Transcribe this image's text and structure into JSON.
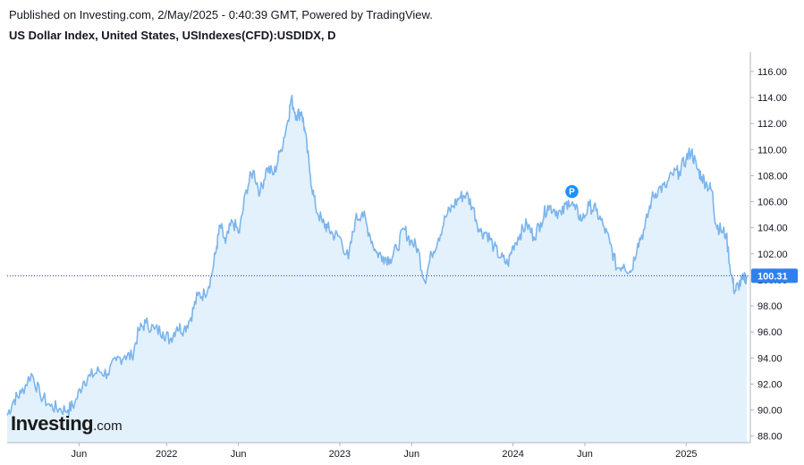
{
  "header": {
    "published_line": "Published on Investing.com, 2/May/2025 - 0:40:39 GMT, Powered by TradingView.",
    "instrument_line": "US Dollar Index, United States, USIndexes(CFD):USDIDX, D"
  },
  "logo": {
    "main": "Investing",
    "suffix": ".com"
  },
  "colors": {
    "line": "#7cb5ec",
    "fill": "#e3f1fd",
    "price_tag": "#2f80ed",
    "marker": "#1e90ff",
    "axis": "#b2b5be",
    "guide": "#1c3aa9"
  },
  "chart_data": {
    "type": "area",
    "title": "US Dollar Index, United States, USIndexes(CFD):USDIDX, D",
    "xlabel": "",
    "ylabel": "",
    "ylim": [
      87.5,
      117.5
    ],
    "xlim": [
      2021.08,
      2025.37
    ],
    "yticks": [
      88,
      90,
      92,
      94,
      96,
      98,
      100,
      102,
      104,
      106,
      108,
      110,
      112,
      114,
      116
    ],
    "ytick_labels": [
      "88.00",
      "90.00",
      "92.00",
      "94.00",
      "96.00",
      "98.00",
      "100.00",
      "102.00",
      "104.00",
      "106.00",
      "108.00",
      "110.00",
      "112.00",
      "114.00",
      "116.00"
    ],
    "xticks": [
      {
        "t": 2021.495,
        "label": "Jun"
      },
      {
        "t": 2022.0,
        "label": "2022"
      },
      {
        "t": 2022.415,
        "label": "Jun"
      },
      {
        "t": 2023.0,
        "label": "2023"
      },
      {
        "t": 2023.415,
        "label": "Jun"
      },
      {
        "t": 2024.0,
        "label": "2024"
      },
      {
        "t": 2024.415,
        "label": "Jun"
      },
      {
        "t": 2025.0,
        "label": "2025"
      }
    ],
    "last_price": 100.31,
    "last_price_label": "100.31",
    "marker": {
      "t": 2024.34,
      "value": 106.5,
      "label": "P"
    },
    "series": [
      {
        "name": "USDIDX",
        "points": [
          [
            2021.08,
            89.6
          ],
          [
            2021.12,
            90.8
          ],
          [
            2021.16,
            91.3
          ],
          [
            2021.22,
            92.8
          ],
          [
            2021.27,
            91.2
          ],
          [
            2021.33,
            90.3
          ],
          [
            2021.38,
            90.1
          ],
          [
            2021.43,
            90.0
          ],
          [
            2021.47,
            90.5
          ],
          [
            2021.52,
            92.2
          ],
          [
            2021.56,
            92.6
          ],
          [
            2021.61,
            93.0
          ],
          [
            2021.66,
            92.8
          ],
          [
            2021.71,
            93.8
          ],
          [
            2021.76,
            94.2
          ],
          [
            2021.8,
            94.1
          ],
          [
            2021.84,
            96.1
          ],
          [
            2021.88,
            96.7
          ],
          [
            2021.93,
            96.2
          ],
          [
            2021.98,
            96.0
          ],
          [
            2022.02,
            95.4
          ],
          [
            2022.06,
            96.4
          ],
          [
            2022.1,
            96.2
          ],
          [
            2022.14,
            97.1
          ],
          [
            2022.18,
            98.8
          ],
          [
            2022.22,
            98.9
          ],
          [
            2022.26,
            100.3
          ],
          [
            2022.29,
            102.6
          ],
          [
            2022.31,
            104.2
          ],
          [
            2022.34,
            102.8
          ],
          [
            2022.38,
            104.5
          ],
          [
            2022.42,
            103.6
          ],
          [
            2022.46,
            106.9
          ],
          [
            2022.5,
            108.4
          ],
          [
            2022.54,
            106.7
          ],
          [
            2022.58,
            108.6
          ],
          [
            2022.62,
            108.1
          ],
          [
            2022.66,
            110.0
          ],
          [
            2022.7,
            112.2
          ],
          [
            2022.72,
            113.9
          ],
          [
            2022.75,
            112.6
          ],
          [
            2022.78,
            112.9
          ],
          [
            2022.8,
            111.3
          ],
          [
            2022.83,
            108.0
          ],
          [
            2022.86,
            105.6
          ],
          [
            2022.9,
            104.4
          ],
          [
            2022.93,
            104.0
          ],
          [
            2022.96,
            103.5
          ],
          [
            2023.0,
            103.3
          ],
          [
            2023.05,
            101.6
          ],
          [
            2023.09,
            104.6
          ],
          [
            2023.13,
            105.2
          ],
          [
            2023.17,
            103.6
          ],
          [
            2023.21,
            102.1
          ],
          [
            2023.25,
            101.8
          ],
          [
            2023.29,
            101.6
          ],
          [
            2023.33,
            102.4
          ],
          [
            2023.37,
            103.9
          ],
          [
            2023.41,
            103.0
          ],
          [
            2023.45,
            102.4
          ],
          [
            2023.49,
            99.9
          ],
          [
            2023.53,
            102.0
          ],
          [
            2023.57,
            103.2
          ],
          [
            2023.61,
            104.8
          ],
          [
            2023.65,
            105.6
          ],
          [
            2023.69,
            106.3
          ],
          [
            2023.73,
            106.6
          ],
          [
            2023.77,
            105.5
          ],
          [
            2023.81,
            103.7
          ],
          [
            2023.85,
            103.6
          ],
          [
            2023.89,
            102.5
          ],
          [
            2023.93,
            101.7
          ],
          [
            2023.97,
            101.2
          ],
          [
            2024.0,
            102.6
          ],
          [
            2024.04,
            103.5
          ],
          [
            2024.08,
            104.3
          ],
          [
            2024.12,
            103.3
          ],
          [
            2024.16,
            104.4
          ],
          [
            2024.2,
            105.7
          ],
          [
            2024.24,
            105.4
          ],
          [
            2024.28,
            105.0
          ],
          [
            2024.32,
            106.1
          ],
          [
            2024.36,
            105.4
          ],
          [
            2024.4,
            104.6
          ],
          [
            2024.44,
            105.7
          ],
          [
            2024.48,
            105.3
          ],
          [
            2024.52,
            104.2
          ],
          [
            2024.56,
            102.8
          ],
          [
            2024.6,
            100.9
          ],
          [
            2024.64,
            101.2
          ],
          [
            2024.68,
            100.6
          ],
          [
            2024.72,
            102.8
          ],
          [
            2024.76,
            103.9
          ],
          [
            2024.8,
            106.2
          ],
          [
            2024.84,
            107.0
          ],
          [
            2024.88,
            107.1
          ],
          [
            2024.92,
            108.1
          ],
          [
            2024.96,
            108.3
          ],
          [
            2025.0,
            109.3
          ],
          [
            2025.03,
            109.9
          ],
          [
            2025.06,
            108.6
          ],
          [
            2025.09,
            107.9
          ],
          [
            2025.12,
            107.3
          ],
          [
            2025.15,
            106.8
          ],
          [
            2025.17,
            104.3
          ],
          [
            2025.2,
            103.8
          ],
          [
            2025.23,
            103.5
          ],
          [
            2025.26,
            100.4
          ],
          [
            2025.28,
            99.1
          ],
          [
            2025.3,
            99.6
          ],
          [
            2025.33,
            100.0
          ],
          [
            2025.35,
            100.3
          ]
        ]
      }
    ]
  }
}
